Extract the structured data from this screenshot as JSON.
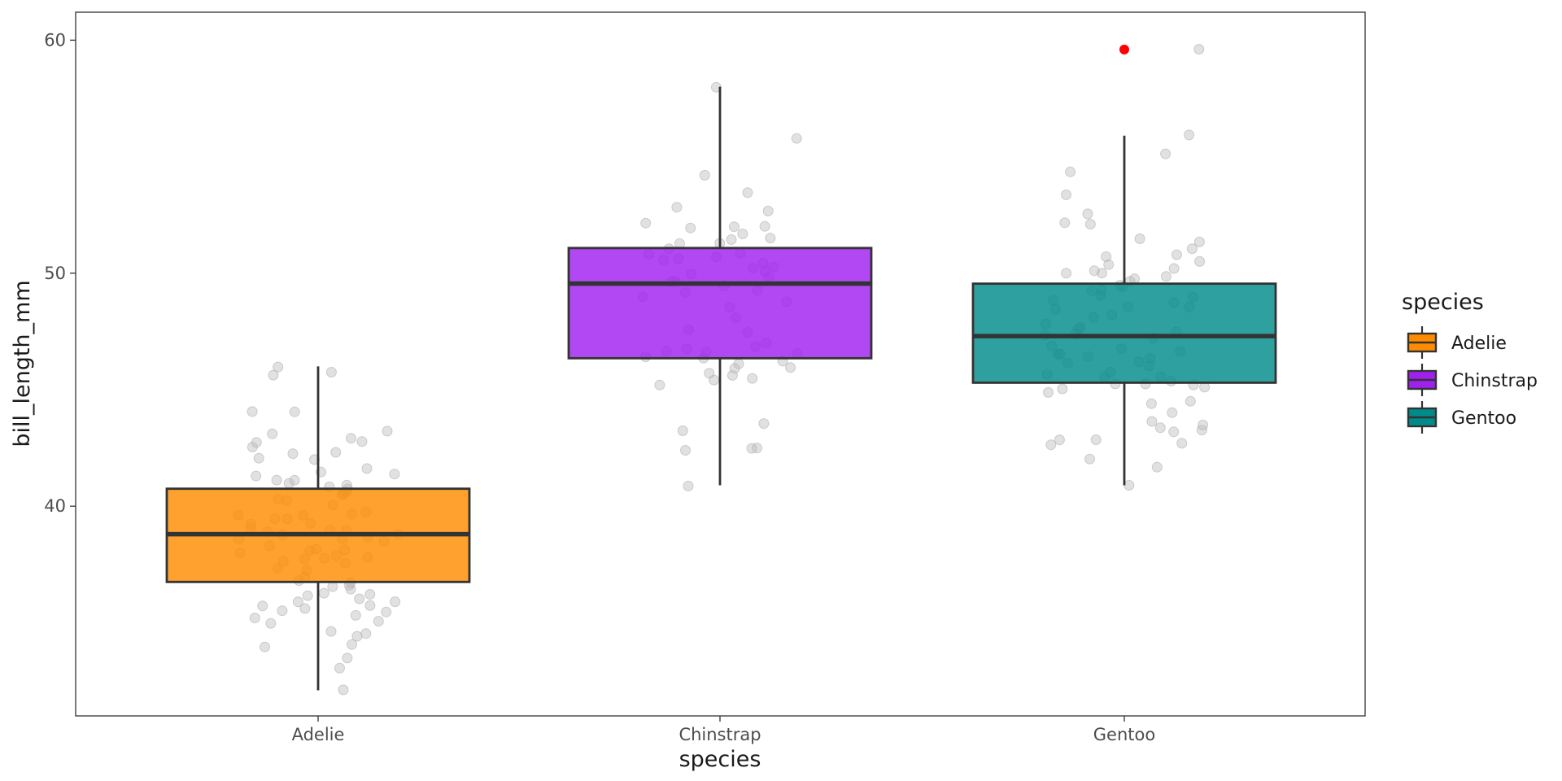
{
  "chart_data": {
    "type": "boxplot",
    "xlabel": "species",
    "ylabel": "bill_length_mm",
    "categories": [
      "Adelie",
      "Chinstrap",
      "Gentoo"
    ],
    "ylim": [
      31,
      61.2
    ],
    "yticks": [
      40,
      50,
      60
    ],
    "grid": false,
    "legend": {
      "title": "species",
      "position": "right",
      "entries": [
        "Adelie",
        "Chinstrap",
        "Gentoo"
      ]
    },
    "colors": {
      "Adelie": "#ff8c00",
      "Chinstrap": "#a020f0",
      "Gentoo": "#008b8b",
      "outlier": "#ff0000",
      "points": "#bdbdbd",
      "box_line": "#333333"
    },
    "boxes": [
      {
        "category": "Adelie",
        "whisker_low": 32.1,
        "q1": 36.75,
        "median": 38.8,
        "q3": 40.75,
        "whisker_high": 46.0,
        "outliers": []
      },
      {
        "category": "Chinstrap",
        "whisker_low": 40.9,
        "q1": 46.35,
        "median": 49.55,
        "q3": 51.08,
        "whisker_high": 58.0,
        "outliers": []
      },
      {
        "category": "Gentoo",
        "whisker_low": 40.9,
        "q1": 45.3,
        "median": 47.3,
        "q3": 49.55,
        "whisker_high": 55.9,
        "outliers": [
          59.6
        ]
      }
    ],
    "points": [
      {
        "category": "Adelie",
        "values": [
          32.1,
          33.1,
          33.5,
          34.0,
          34.1,
          34.4,
          34.5,
          34.6,
          35.0,
          35.1,
          35.2,
          35.3,
          35.5,
          35.5,
          35.6,
          35.7,
          35.7,
          35.9,
          35.9,
          36.0,
          36.2,
          36.2,
          36.3,
          36.4,
          36.5,
          36.6,
          36.7,
          36.8,
          37.0,
          37.2,
          37.3,
          37.5,
          37.6,
          37.7,
          37.8,
          37.8,
          37.9,
          38.0,
          38.1,
          38.1,
          38.2,
          38.3,
          38.5,
          38.6,
          38.6,
          38.7,
          38.8,
          38.8,
          38.9,
          39.0,
          39.0,
          39.1,
          39.2,
          39.3,
          39.5,
          39.5,
          39.6,
          39.6,
          39.7,
          39.8,
          40.1,
          40.2,
          40.3,
          40.5,
          40.6,
          40.6,
          40.7,
          40.8,
          40.9,
          41.0,
          41.1,
          41.1,
          41.3,
          41.4,
          41.5,
          41.6,
          42.0,
          42.1,
          42.2,
          42.3,
          42.5,
          42.7,
          42.8,
          42.9,
          43.1,
          43.2,
          44.1,
          44.1,
          45.6,
          45.8,
          46.0
        ]
      },
      {
        "category": "Chinstrap",
        "values": [
          40.9,
          42.4,
          42.5,
          42.5,
          43.2,
          43.5,
          45.2,
          45.4,
          45.5,
          45.6,
          45.7,
          45.9,
          46.0,
          46.1,
          46.2,
          46.4,
          46.4,
          46.5,
          46.6,
          46.7,
          46.8,
          46.9,
          47.0,
          47.5,
          47.6,
          48.1,
          48.5,
          48.8,
          49.0,
          49.2,
          49.3,
          49.5,
          49.6,
          49.7,
          49.8,
          50.0,
          50.1,
          50.2,
          50.3,
          50.4,
          50.5,
          50.6,
          50.7,
          50.8,
          50.9,
          51.0,
          51.3,
          51.3,
          51.4,
          51.5,
          51.7,
          51.9,
          52.0,
          52.0,
          52.2,
          52.7,
          52.8,
          53.5,
          54.2,
          55.8,
          58.0
        ]
      },
      {
        "category": "Gentoo",
        "values": [
          40.9,
          41.7,
          42.0,
          42.6,
          42.7,
          42.8,
          42.9,
          43.2,
          43.3,
          43.4,
          43.5,
          43.6,
          44.0,
          44.4,
          44.5,
          44.9,
          45.0,
          45.1,
          45.2,
          45.2,
          45.3,
          45.4,
          45.5,
          45.5,
          45.7,
          45.8,
          46.0,
          46.1,
          46.2,
          46.3,
          46.4,
          46.5,
          46.5,
          46.6,
          46.8,
          46.9,
          47.2,
          47.3,
          47.4,
          47.5,
          47.6,
          47.7,
          47.8,
          48.1,
          48.2,
          48.4,
          48.5,
          48.6,
          48.7,
          48.8,
          49.0,
          49.1,
          49.2,
          49.3,
          49.4,
          49.5,
          49.6,
          49.8,
          49.9,
          50.0,
          50.0,
          50.1,
          50.2,
          50.4,
          50.5,
          50.7,
          50.8,
          51.1,
          51.3,
          51.5,
          52.1,
          52.2,
          52.5,
          53.4,
          54.3,
          55.1,
          55.9,
          59.6
        ]
      }
    ]
  }
}
